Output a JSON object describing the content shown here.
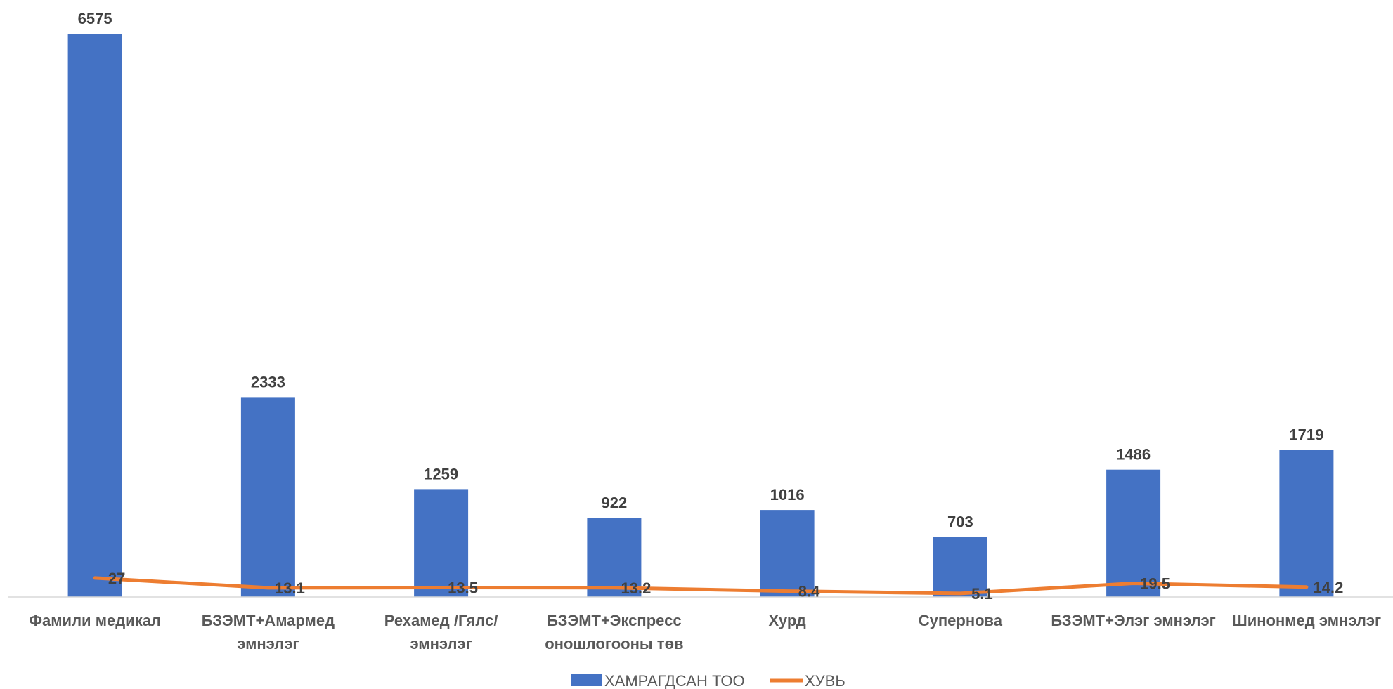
{
  "chart_data": {
    "type": "bar",
    "categories": [
      [
        "Фамили медикал"
      ],
      [
        "БЗЭМТ+Амармед",
        "эмнэлэг"
      ],
      [
        "Рехамед /Гялс/",
        "эмнэлэг"
      ],
      [
        "БЗЭМТ+Экспресс",
        "оношлогооны төв"
      ],
      [
        "Хурд"
      ],
      [
        "Супернова"
      ],
      [
        "БЗЭМТ+Элэг эмнэлэг"
      ],
      [
        "Шинонмед эмнэлэг"
      ]
    ],
    "series": [
      {
        "name": "ХАМРАГДСАН ТОО",
        "type": "bar",
        "color": "#4472C4",
        "values": [
          6575,
          2333,
          1259,
          922,
          1016,
          703,
          1486,
          1719
        ],
        "labels": [
          "6575",
          "2333",
          "1259",
          "922",
          "1016",
          "703",
          "1486",
          "1719"
        ]
      },
      {
        "name": "ХУВЬ",
        "type": "line",
        "color": "#ED7D31",
        "values": [
          27,
          13.1,
          13.5,
          13.2,
          8.4,
          5.1,
          19.5,
          14.2
        ],
        "labels": [
          "27",
          "13.1",
          "13.5",
          "13.2",
          "8.4",
          "5.1",
          "19.5",
          "14.2"
        ]
      }
    ],
    "ylim": [
      0,
      6575
    ],
    "grid": false,
    "legend_position": "bottom",
    "title": "",
    "xlabel": "",
    "ylabel": ""
  }
}
